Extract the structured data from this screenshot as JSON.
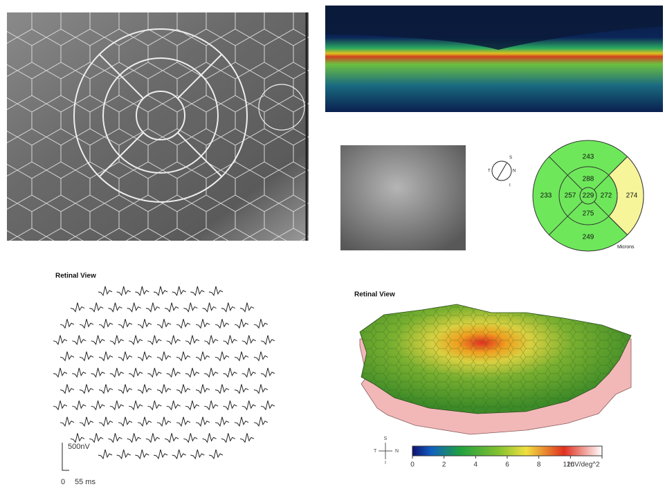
{
  "thickness_map": {
    "outer": {
      "superior": 243,
      "nasal": 274,
      "inferior": 249,
      "temporal": 233
    },
    "inner": {
      "superior": 288,
      "nasal": 272,
      "inferior": 275,
      "temporal": 257
    },
    "center": 229,
    "unit": "Microns",
    "orientation": {
      "s": "S",
      "n": "N",
      "i": "I",
      "t": "T"
    }
  },
  "trace_array": {
    "title": "Retinal View",
    "amplitude_scale": "500nV",
    "time_start": "0",
    "time_scale": "55 ms"
  },
  "response_map": {
    "title": "Retinal View",
    "orientation": {
      "s": "S",
      "n": "N",
      "i": "I",
      "t": "T"
    },
    "colorbar_lim": [
      0,
      12
    ],
    "colorbar_ticks": [
      0,
      2,
      4,
      6,
      8,
      10,
      {
        "value": 12,
        "label": "12nV/deg^2"
      }
    ]
  }
}
